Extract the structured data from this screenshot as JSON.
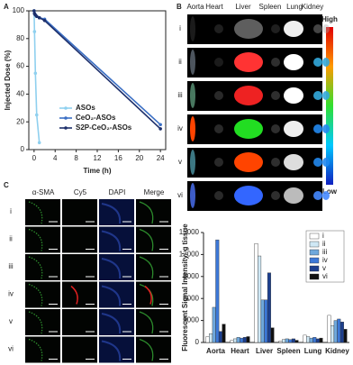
{
  "panel_labels": [
    "A",
    "B",
    "C"
  ],
  "chart_data": [
    {
      "type": "line",
      "x": [
        0,
        0.083,
        0.25,
        0.5,
        1,
        2,
        24
      ],
      "series": [
        {
          "name": "ASOs",
          "color": "#8fd0ef",
          "values": [
            100,
            85,
            55,
            25,
            5,
            null,
            null
          ]
        },
        {
          "name": "CeO₂-ASOs",
          "color": "#3b6fc4",
          "values": [
            100,
            98,
            97,
            96,
            95,
            94,
            18
          ]
        },
        {
          "name": "S2P-CeO₂-ASOs",
          "color": "#1d2f6b",
          "values": [
            100,
            98,
            97,
            96,
            95,
            93,
            15
          ]
        }
      ],
      "xlabel": "Time (h)",
      "ylabel": "Injected Dose (%)",
      "xlim": [
        -1,
        25
      ],
      "xticks": [
        0,
        4,
        8,
        12,
        16,
        20,
        24
      ],
      "ylim": [
        0,
        100
      ],
      "yticks": [
        0,
        20,
        40,
        60,
        80,
        100
      ],
      "legend": "bottom-left"
    },
    {
      "type": "bar",
      "categories": [
        "Aorta",
        "Heart",
        "Liver",
        "Spleen",
        "Lung",
        "Kidney"
      ],
      "series": [
        {
          "name": "i",
          "color": "#ffffff",
          "values": [
            800,
            300,
            13500,
            200,
            1000,
            3700
          ]
        },
        {
          "name": "ii",
          "color": "#cfe8f5",
          "values": [
            1200,
            500,
            11800,
            400,
            800,
            2300
          ]
        },
        {
          "name": "iii",
          "color": "#6fa8dc",
          "values": [
            4800,
            700,
            5800,
            500,
            600,
            3000
          ]
        },
        {
          "name": "iv",
          "color": "#3c78d8",
          "values": [
            14000,
            600,
            5800,
            400,
            700,
            3200
          ]
        },
        {
          "name": "v",
          "color": "#1c3f8f",
          "values": [
            1500,
            700,
            9500,
            500,
            500,
            2800
          ]
        },
        {
          "name": "vi",
          "color": "#111111",
          "values": [
            2500,
            800,
            2000,
            300,
            600,
            1800
          ]
        }
      ],
      "ylabel": "Fluorescent Signal Intensity/ g tissue",
      "ylim": [
        0,
        15000
      ],
      "yticks": [
        0,
        3000,
        6000,
        9000,
        12000,
        15000
      ],
      "legend": "top-right"
    }
  ],
  "imaging": {
    "organs": [
      "Aorta",
      "Heart",
      "Liver",
      "Spleen",
      "Lung",
      "Kidney"
    ],
    "rows": [
      "i",
      "ii",
      "iii",
      "iv",
      "v",
      "vi"
    ],
    "scale_high": "High",
    "scale_low": "Low"
  },
  "microscopy": {
    "channels": [
      "α-SMA",
      "Cy5",
      "DAPI",
      "Merge"
    ],
    "rows": [
      "i",
      "ii",
      "iii",
      "iv",
      "v",
      "vi"
    ]
  }
}
